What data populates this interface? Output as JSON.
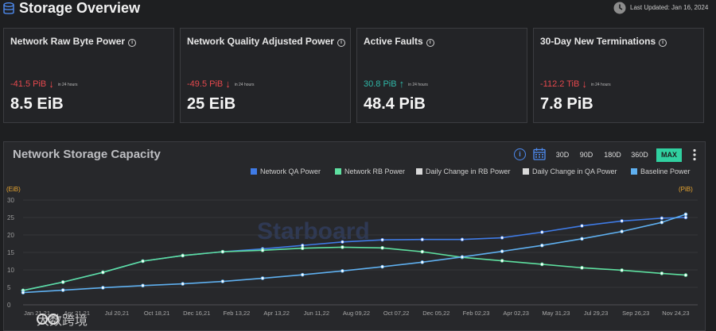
{
  "header": {
    "title": "Storage Overview",
    "last_updated": "Last Updated: Jan 16, 2024"
  },
  "cards": [
    {
      "title": "Network Raw Byte Power",
      "change": "-41.5 PiB",
      "direction": "down",
      "period": "in 24 hours",
      "value": "8.5 EiB"
    },
    {
      "title": "Network Quality Adjusted Power",
      "change": "-49.5 PiB",
      "direction": "down",
      "period": "in 24 hours",
      "value": "25 EiB"
    },
    {
      "title": "Active Faults",
      "change": "30.8 PiB",
      "direction": "up",
      "period": "in 24 hours",
      "value": "48.4 PiB"
    },
    {
      "title": "30-Day New Terminations",
      "change": "-112.2 TiB",
      "direction": "down",
      "period": "in 24 hours",
      "value": "7.8 PiB"
    }
  ],
  "chart_panel": {
    "title": "Network Storage Capacity",
    "ranges": [
      "30D",
      "90D",
      "180D",
      "360D",
      "MAX"
    ],
    "active_range": "MAX",
    "watermark": "Starboard"
  },
  "brand_watermark": "大数跨境",
  "colors": {
    "qa": "#3f7be6",
    "rb": "#5ee0a0",
    "daily_rb": "#d9d9d9",
    "daily_qa": "#d9d9d9",
    "baseline": "#5fb0f0",
    "active_range": "#30d0a0",
    "axis_unit": "#e8a530"
  },
  "chart_data": {
    "type": "line",
    "left_axis_unit": "(EiB)",
    "right_axis_unit": "(PiB)",
    "ylim": [
      0,
      30
    ],
    "y_ticks": [
      "0",
      "5",
      "10",
      "15",
      "20",
      "25",
      "30"
    ],
    "x_ticks": [
      "Jan 21,21",
      "Apr 21,21",
      "Jul 20,21",
      "Oct 18,21",
      "Dec 16,21",
      "Feb 13,22",
      "Apr 13,22",
      "Jun 11,22",
      "Aug 09,22",
      "Oct 07,22",
      "Dec 05,22",
      "Feb 02,23",
      "Apr 02,23",
      "May 31,23",
      "Jul 29,23",
      "Sep 26,23",
      "Nov 24,23"
    ],
    "x_index_range": [
      0,
      16.9
    ],
    "legend_position": "top-right",
    "grid": true,
    "series": [
      {
        "name": "Network QA Power",
        "color": "#3f7be6",
        "x": [
          0,
          1,
          2,
          3,
          4,
          5,
          6,
          7,
          8,
          9,
          10,
          11,
          12,
          13,
          14,
          15,
          16,
          16.6
        ],
        "values": [
          4.1,
          6.5,
          9.3,
          12.5,
          14.1,
          15.2,
          16.0,
          17.0,
          18.0,
          18.6,
          18.7,
          18.7,
          19.2,
          20.8,
          22.6,
          24.0,
          24.8,
          25.0
        ]
      },
      {
        "name": "Network RB Power",
        "color": "#5ee0a0",
        "x": [
          0,
          1,
          2,
          3,
          4,
          5,
          6,
          7,
          8,
          9,
          10,
          11,
          12,
          13,
          14,
          15,
          16,
          16.6
        ],
        "values": [
          4.1,
          6.5,
          9.3,
          12.5,
          14.1,
          15.2,
          15.6,
          16.2,
          16.5,
          16.3,
          15.2,
          13.6,
          12.6,
          11.6,
          10.6,
          9.9,
          9.0,
          8.5
        ]
      },
      {
        "name": "Baseline Power",
        "color": "#5fb0f0",
        "x": [
          0,
          1,
          2,
          3,
          4,
          5,
          6,
          7,
          8,
          9,
          10,
          11,
          12,
          13,
          14,
          15,
          16,
          16.6
        ],
        "values": [
          3.5,
          4.2,
          4.9,
          5.5,
          6.0,
          6.7,
          7.6,
          8.6,
          9.7,
          10.9,
          12.2,
          13.7,
          15.3,
          17.0,
          18.9,
          21.0,
          23.6,
          25.9
        ]
      },
      {
        "name": "Daily Change in RB Power",
        "color": "#d9d9d9",
        "x": [],
        "values": []
      },
      {
        "name": "Daily Change in QA Power",
        "color": "#d9d9d9",
        "x": [],
        "values": []
      }
    ]
  }
}
